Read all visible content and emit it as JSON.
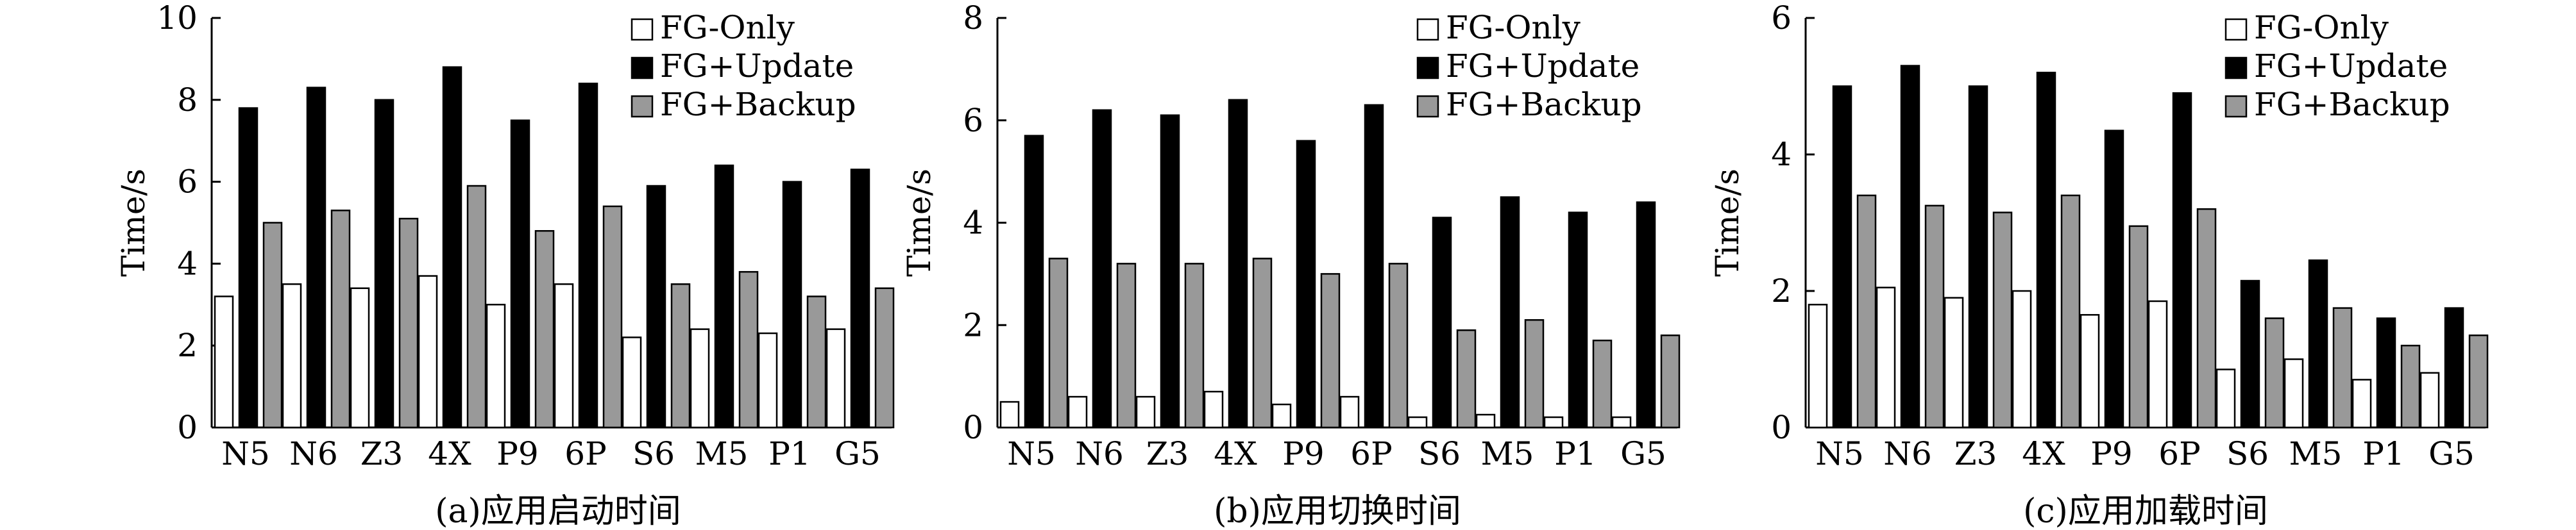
{
  "chart_data": [
    {
      "type": "bar",
      "caption": "(a)应用启动时间",
      "ylabel": "Time/s",
      "ylim": [
        0,
        10
      ],
      "yticks": [
        0,
        2,
        4,
        6,
        8,
        10
      ],
      "legend_position": "top-right",
      "categories": [
        "N5",
        "N6",
        "Z3",
        "4X",
        "P9",
        "6P",
        "S6",
        "M5",
        "P1",
        "G5"
      ],
      "series": [
        {
          "name": "FG-Only",
          "color": "#ffffff",
          "values": [
            3.2,
            3.5,
            3.4,
            3.7,
            3.0,
            3.5,
            2.2,
            2.4,
            2.3,
            2.4
          ]
        },
        {
          "name": "FG+Update",
          "color": "#000000",
          "values": [
            7.8,
            8.3,
            8.0,
            8.8,
            7.5,
            8.4,
            5.9,
            6.4,
            6.0,
            6.3
          ]
        },
        {
          "name": "FG+Backup",
          "color": "#999999",
          "values": [
            5.0,
            5.3,
            5.1,
            5.9,
            4.8,
            5.4,
            3.5,
            3.8,
            3.2,
            3.4
          ]
        }
      ]
    },
    {
      "type": "bar",
      "caption": "(b)应用切换时间",
      "ylabel": "Time/s",
      "ylim": [
        0,
        8
      ],
      "yticks": [
        0,
        2,
        4,
        6,
        8
      ],
      "legend_position": "top-right",
      "categories": [
        "N5",
        "N6",
        "Z3",
        "4X",
        "P9",
        "6P",
        "S6",
        "M5",
        "P1",
        "G5"
      ],
      "series": [
        {
          "name": "FG-Only",
          "color": "#ffffff",
          "values": [
            0.5,
            0.6,
            0.6,
            0.7,
            0.45,
            0.6,
            0.2,
            0.25,
            0.2,
            0.2
          ]
        },
        {
          "name": "FG+Update",
          "color": "#000000",
          "values": [
            5.7,
            6.2,
            6.1,
            6.4,
            5.6,
            6.3,
            4.1,
            4.5,
            4.2,
            4.4
          ]
        },
        {
          "name": "FG+Backup",
          "color": "#999999",
          "values": [
            3.3,
            3.2,
            3.2,
            3.3,
            3.0,
            3.2,
            1.9,
            2.1,
            1.7,
            1.8
          ]
        }
      ]
    },
    {
      "type": "bar",
      "caption": "(c)应用加载时间",
      "ylabel": "Time/s",
      "ylim": [
        0,
        6
      ],
      "yticks": [
        0,
        2,
        4,
        6
      ],
      "legend_position": "top-right",
      "categories": [
        "N5",
        "N6",
        "Z3",
        "4X",
        "P9",
        "6P",
        "S6",
        "M5",
        "P1",
        "G5"
      ],
      "series": [
        {
          "name": "FG-Only",
          "color": "#ffffff",
          "values": [
            1.8,
            2.05,
            1.9,
            2.0,
            1.65,
            1.85,
            0.85,
            1.0,
            0.7,
            0.8
          ]
        },
        {
          "name": "FG+Update",
          "color": "#000000",
          "values": [
            5.0,
            5.3,
            5.0,
            5.2,
            4.35,
            4.9,
            2.15,
            2.45,
            1.6,
            1.75
          ]
        },
        {
          "name": "FG+Backup",
          "color": "#999999",
          "values": [
            3.4,
            3.25,
            3.15,
            3.4,
            2.95,
            3.2,
            1.6,
            1.75,
            1.2,
            1.35
          ]
        }
      ]
    }
  ]
}
